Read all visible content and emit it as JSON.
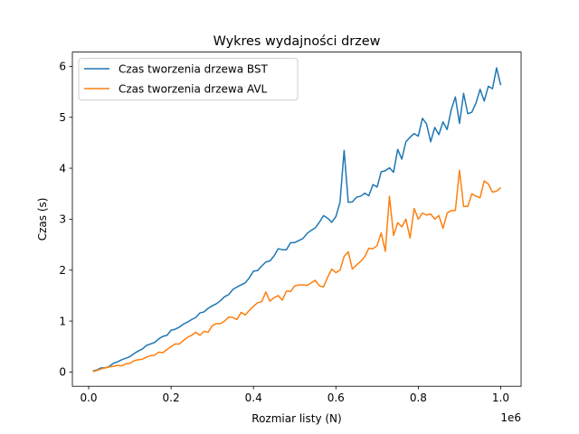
{
  "chart_data": {
    "type": "line",
    "title": "Wykres wydajności drzew",
    "xlabel": "Rozmiar listy (N)",
    "ylabel": "Czas (s)",
    "x_scale_label": "1e6",
    "xlim": [
      -0.0395,
      1.0495
    ],
    "ylim": [
      -0.28,
      6.28
    ],
    "x_ticks": [
      0.0,
      0.2,
      0.4,
      0.6,
      0.8,
      1.0
    ],
    "x_tick_labels": [
      "0.0",
      "0.2",
      "0.4",
      "0.6",
      "0.8",
      "1.0"
    ],
    "y_ticks": [
      0,
      1,
      2,
      3,
      4,
      5,
      6
    ],
    "y_tick_labels": [
      "0",
      "1",
      "2",
      "3",
      "4",
      "5",
      "6"
    ],
    "grid": false,
    "legend_position": "upper-left",
    "x": [
      0.01,
      0.02,
      0.03,
      0.04,
      0.05,
      0.06,
      0.07,
      0.08,
      0.09,
      0.1,
      0.11,
      0.12,
      0.13,
      0.14,
      0.15,
      0.16,
      0.17,
      0.18,
      0.19,
      0.2,
      0.21,
      0.22,
      0.23,
      0.24,
      0.25,
      0.26,
      0.27,
      0.28,
      0.29,
      0.3,
      0.31,
      0.32,
      0.33,
      0.34,
      0.35,
      0.36,
      0.37,
      0.38,
      0.39,
      0.4,
      0.41,
      0.42,
      0.43,
      0.44,
      0.45,
      0.46,
      0.47,
      0.48,
      0.49,
      0.5,
      0.51,
      0.52,
      0.53,
      0.54,
      0.55,
      0.56,
      0.57,
      0.58,
      0.59,
      0.6,
      0.61,
      0.62,
      0.63,
      0.64,
      0.65,
      0.66,
      0.67,
      0.68,
      0.69,
      0.7,
      0.71,
      0.72,
      0.73,
      0.74,
      0.75,
      0.76,
      0.77,
      0.78,
      0.79,
      0.8,
      0.81,
      0.82,
      0.83,
      0.84,
      0.85,
      0.86,
      0.87,
      0.88,
      0.89,
      0.9,
      0.91,
      0.92,
      0.93,
      0.94,
      0.95,
      0.96,
      0.97,
      0.98,
      0.99,
      1.0
    ],
    "series": [
      {
        "name": "Czas tworzenia drzewa BST",
        "color": "#1f77b4",
        "values": [
          0.02,
          0.04,
          0.08,
          0.08,
          0.11,
          0.17,
          0.2,
          0.24,
          0.27,
          0.3,
          0.36,
          0.41,
          0.45,
          0.52,
          0.55,
          0.58,
          0.65,
          0.7,
          0.72,
          0.82,
          0.84,
          0.88,
          0.94,
          0.98,
          1.03,
          1.07,
          1.16,
          1.18,
          1.25,
          1.3,
          1.34,
          1.4,
          1.48,
          1.52,
          1.62,
          1.67,
          1.71,
          1.75,
          1.85,
          1.98,
          1.99,
          2.08,
          2.16,
          2.18,
          2.28,
          2.42,
          2.4,
          2.4,
          2.54,
          2.54,
          2.58,
          2.62,
          2.72,
          2.78,
          2.83,
          2.94,
          3.07,
          3.02,
          2.94,
          3.05,
          3.33,
          4.35,
          3.33,
          3.34,
          3.43,
          3.45,
          3.51,
          3.46,
          3.68,
          3.63,
          3.93,
          3.95,
          4.01,
          3.92,
          4.37,
          4.18,
          4.52,
          4.61,
          4.68,
          4.63,
          4.98,
          4.87,
          4.52,
          4.8,
          4.66,
          4.91,
          4.76,
          5.15,
          5.4,
          4.88,
          5.47,
          5.07,
          5.1,
          5.28,
          5.55,
          5.32,
          5.61,
          5.56,
          5.97,
          5.63
        ]
      },
      {
        "name": "Czas tworzenia drzewa AVL",
        "color": "#ff7f0e",
        "values": [
          0.01,
          0.03,
          0.06,
          0.08,
          0.1,
          0.11,
          0.13,
          0.12,
          0.16,
          0.17,
          0.22,
          0.24,
          0.25,
          0.29,
          0.32,
          0.33,
          0.39,
          0.38,
          0.44,
          0.5,
          0.55,
          0.55,
          0.62,
          0.68,
          0.72,
          0.78,
          0.72,
          0.8,
          0.78,
          0.91,
          0.95,
          0.95,
          1.0,
          1.08,
          1.07,
          1.03,
          1.17,
          1.12,
          1.21,
          1.29,
          1.36,
          1.38,
          1.57,
          1.39,
          1.46,
          1.5,
          1.41,
          1.59,
          1.58,
          1.69,
          1.71,
          1.71,
          1.7,
          1.75,
          1.8,
          1.69,
          1.67,
          1.86,
          2.02,
          1.95,
          2.0,
          2.27,
          2.36,
          2.02,
          2.1,
          2.17,
          2.26,
          2.43,
          2.42,
          2.48,
          2.73,
          2.37,
          3.45,
          2.68,
          2.93,
          2.85,
          3.0,
          2.63,
          3.21,
          3.0,
          3.12,
          3.08,
          3.1,
          3.0,
          3.07,
          2.82,
          3.12,
          3.17,
          3.17,
          3.96,
          3.25,
          3.25,
          3.5,
          3.45,
          3.42,
          3.75,
          3.69,
          3.53,
          3.55,
          3.62
        ]
      }
    ]
  }
}
